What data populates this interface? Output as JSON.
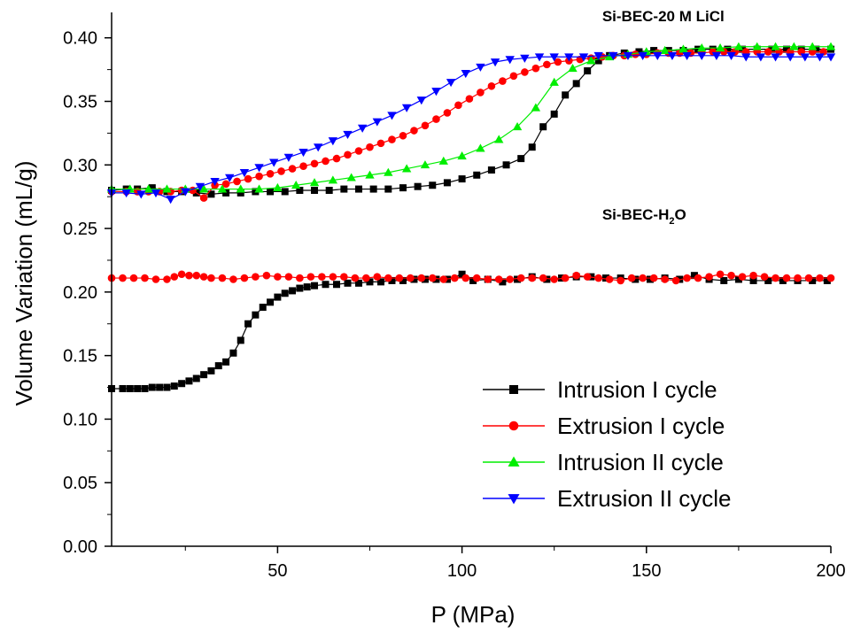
{
  "chart_data": {
    "type": "line",
    "xlabel": "P (MPa)",
    "ylabel": "Volume Variation (mL/g)",
    "xlim": [
      5,
      200
    ],
    "ylim": [
      0.0,
      0.42
    ],
    "x_ticks": [
      50,
      100,
      150,
      200
    ],
    "y_ticks": [
      0.0,
      0.05,
      0.1,
      0.15,
      0.2,
      0.25,
      0.3,
      0.35,
      0.4
    ],
    "x_tick_labels": [
      "50",
      "100",
      "150",
      "200"
    ],
    "y_tick_labels": [
      "0.00",
      "0.05",
      "0.10",
      "0.15",
      "0.20",
      "0.25",
      "0.30",
      "0.35",
      "0.40"
    ],
    "grid": false,
    "legend_position": "bottom-right",
    "annotations": [
      {
        "text": "Si-BEC-20 M LiCl",
        "x": 138,
        "y": 0.413
      },
      {
        "text": "Si-BEC-H",
        "sub": "2",
        "tail": "O",
        "x": 138,
        "y": 0.257
      }
    ],
    "series": [
      {
        "name": "Intrusion I cycle",
        "color": "#000000",
        "marker": "square",
        "groups": [
          {
            "x": [
              5,
              8,
              10,
              12,
              14,
              16,
              18,
              20,
              22,
              24,
              26,
              28,
              30,
              32,
              34,
              36,
              38,
              40,
              42,
              44,
              46,
              48,
              50,
              52,
              54,
              56,
              58,
              60,
              63,
              66,
              69,
              72,
              75,
              78,
              81,
              84,
              87,
              90,
              93,
              96,
              100,
              103,
              107,
              111,
              115,
              119,
              123,
              127,
              131,
              135,
              139,
              143,
              147,
              151,
              155,
              159,
              163,
              167,
              171,
              175,
              179,
              183,
              187,
              191,
              195,
              199
            ],
            "y": [
              0.124,
              0.124,
              0.124,
              0.124,
              0.124,
              0.125,
              0.125,
              0.125,
              0.126,
              0.128,
              0.13,
              0.132,
              0.135,
              0.138,
              0.142,
              0.145,
              0.152,
              0.162,
              0.175,
              0.182,
              0.188,
              0.192,
              0.196,
              0.199,
              0.201,
              0.203,
              0.204,
              0.205,
              0.206,
              0.206,
              0.207,
              0.207,
              0.208,
              0.208,
              0.209,
              0.209,
              0.21,
              0.21,
              0.21,
              0.21,
              0.214,
              0.209,
              0.21,
              0.208,
              0.21,
              0.212,
              0.21,
              0.211,
              0.212,
              0.212,
              0.211,
              0.211,
              0.21,
              0.21,
              0.211,
              0.21,
              0.213,
              0.21,
              0.209,
              0.21,
              0.209,
              0.209,
              0.209,
              0.209,
              0.209,
              0.209
            ]
          },
          {
            "x": [
              5,
              9,
              12,
              16,
              20,
              24,
              28,
              32,
              36,
              40,
              44,
              48,
              52,
              56,
              60,
              64,
              68,
              72,
              76,
              80,
              84,
              88,
              92,
              96,
              100,
              104,
              108,
              112,
              116,
              119,
              122,
              125,
              128,
              131,
              134,
              137,
              140,
              144,
              148,
              152,
              156,
              160,
              164,
              168,
              172,
              176,
              180,
              184,
              188,
              192,
              196,
              200
            ],
            "y": [
              0.28,
              0.281,
              0.281,
              0.282,
              0.279,
              0.279,
              0.278,
              0.277,
              0.278,
              0.278,
              0.279,
              0.279,
              0.279,
              0.28,
              0.28,
              0.28,
              0.281,
              0.281,
              0.281,
              0.281,
              0.282,
              0.283,
              0.284,
              0.286,
              0.289,
              0.292,
              0.296,
              0.3,
              0.305,
              0.314,
              0.33,
              0.34,
              0.355,
              0.364,
              0.374,
              0.382,
              0.386,
              0.388,
              0.389,
              0.39,
              0.39,
              0.39,
              0.391,
              0.391,
              0.391,
              0.391,
              0.391,
              0.391,
              0.391,
              0.391,
              0.391,
              0.391
            ]
          }
        ]
      },
      {
        "name": "Extrusion I cycle",
        "color": "#ff0000",
        "marker": "circle",
        "groups": [
          {
            "x": [
              5,
              8,
              11,
              14,
              17,
              20,
              22,
              24,
              26,
              28,
              30,
              32,
              35,
              38,
              41,
              44,
              47,
              50,
              53,
              56,
              59,
              62,
              65,
              68,
              71,
              74,
              77,
              80,
              83,
              86,
              89,
              92,
              95,
              98,
              101,
              104,
              107,
              110,
              113,
              116,
              119,
              122,
              125,
              128,
              131,
              134,
              137,
              140,
              143,
              146,
              149,
              152,
              155,
              158,
              161,
              164,
              167,
              170,
              173,
              176,
              179,
              182,
              185,
              188,
              191,
              194,
              197,
              200
            ],
            "y": [
              0.211,
              0.211,
              0.211,
              0.211,
              0.21,
              0.21,
              0.212,
              0.214,
              0.213,
              0.213,
              0.212,
              0.211,
              0.211,
              0.21,
              0.211,
              0.212,
              0.213,
              0.212,
              0.212,
              0.211,
              0.212,
              0.212,
              0.212,
              0.212,
              0.211,
              0.211,
              0.212,
              0.211,
              0.211,
              0.211,
              0.211,
              0.211,
              0.21,
              0.211,
              0.211,
              0.211,
              0.21,
              0.21,
              0.21,
              0.211,
              0.211,
              0.211,
              0.21,
              0.211,
              0.213,
              0.212,
              0.211,
              0.21,
              0.209,
              0.211,
              0.211,
              0.211,
              0.21,
              0.209,
              0.211,
              0.211,
              0.212,
              0.214,
              0.213,
              0.212,
              0.213,
              0.212,
              0.211,
              0.211,
              0.211,
              0.211,
              0.211,
              0.211
            ]
          },
          {
            "x": [
              5,
              9,
              12,
              15,
              18,
              21,
              24,
              27,
              30,
              33,
              36,
              39,
              42,
              45,
              48,
              51,
              54,
              57,
              60,
              63,
              66,
              69,
              72,
              75,
              78,
              81,
              84,
              87,
              90,
              93,
              96,
              99,
              102,
              105,
              108,
              111,
              114,
              117,
              120,
              123,
              126,
              129,
              132,
              135,
              138,
              141,
              144,
              147,
              150,
              153,
              156,
              159,
              162,
              165,
              168,
              171,
              174,
              177,
              180,
              183,
              186,
              189,
              192,
              195,
              198
            ],
            "y": [
              0.279,
              0.279,
              0.279,
              0.279,
              0.279,
              0.279,
              0.28,
              0.28,
              0.274,
              0.284,
              0.285,
              0.287,
              0.289,
              0.291,
              0.293,
              0.295,
              0.297,
              0.299,
              0.301,
              0.303,
              0.305,
              0.308,
              0.311,
              0.314,
              0.317,
              0.32,
              0.323,
              0.327,
              0.331,
              0.336,
              0.341,
              0.347,
              0.352,
              0.357,
              0.362,
              0.366,
              0.37,
              0.373,
              0.376,
              0.379,
              0.381,
              0.382,
              0.383,
              0.384,
              0.385,
              0.386,
              0.386,
              0.387,
              0.387,
              0.388,
              0.388,
              0.388,
              0.388,
              0.388,
              0.389,
              0.389,
              0.389,
              0.389,
              0.389,
              0.389,
              0.389,
              0.389,
              0.389,
              0.389,
              0.389
            ]
          }
        ]
      },
      {
        "name": "Intrusion II cycle",
        "color": "#00ee00",
        "marker": "triangle-up",
        "groups": [
          {
            "x": [
              5,
              10,
              15,
              20,
              25,
              30,
              35,
              40,
              45,
              50,
              55,
              60,
              65,
              70,
              75,
              80,
              85,
              90,
              95,
              100,
              105,
              110,
              115,
              120,
              125,
              130,
              135,
              140,
              145,
              150,
              155,
              160,
              165,
              170,
              175,
              180,
              185,
              190,
              195,
              200
            ],
            "y": [
              0.281,
              0.281,
              0.281,
              0.281,
              0.281,
              0.281,
              0.281,
              0.281,
              0.281,
              0.282,
              0.284,
              0.286,
              0.288,
              0.29,
              0.292,
              0.294,
              0.297,
              0.3,
              0.303,
              0.307,
              0.313,
              0.32,
              0.33,
              0.345,
              0.365,
              0.376,
              0.382,
              0.385,
              0.387,
              0.389,
              0.39,
              0.391,
              0.392,
              0.392,
              0.393,
              0.393,
              0.393,
              0.393,
              0.393,
              0.393
            ]
          }
        ]
      },
      {
        "name": "Extrusion II cycle",
        "color": "#0000ff",
        "marker": "triangle-down",
        "groups": [
          {
            "x": [
              5,
              9,
              13,
              17,
              21,
              25,
              29,
              33,
              37,
              41,
              45,
              49,
              53,
              57,
              61,
              65,
              69,
              73,
              77,
              81,
              85,
              89,
              93,
              97,
              101,
              105,
              109,
              113,
              117,
              121,
              125,
              129,
              133,
              137,
              141,
              145,
              149,
              153,
              157,
              161,
              165,
              169,
              173,
              177,
              181,
              185,
              189,
              193,
              197,
              200
            ],
            "y": [
              0.278,
              0.278,
              0.277,
              0.278,
              0.273,
              0.279,
              0.283,
              0.287,
              0.29,
              0.294,
              0.298,
              0.302,
              0.306,
              0.31,
              0.314,
              0.319,
              0.324,
              0.329,
              0.334,
              0.339,
              0.345,
              0.351,
              0.358,
              0.365,
              0.372,
              0.377,
              0.381,
              0.383,
              0.384,
              0.385,
              0.385,
              0.385,
              0.385,
              0.386,
              0.386,
              0.386,
              0.386,
              0.386,
              0.386,
              0.386,
              0.386,
              0.386,
              0.386,
              0.385,
              0.385,
              0.385,
              0.385,
              0.385,
              0.385,
              0.385
            ]
          }
        ]
      }
    ]
  }
}
